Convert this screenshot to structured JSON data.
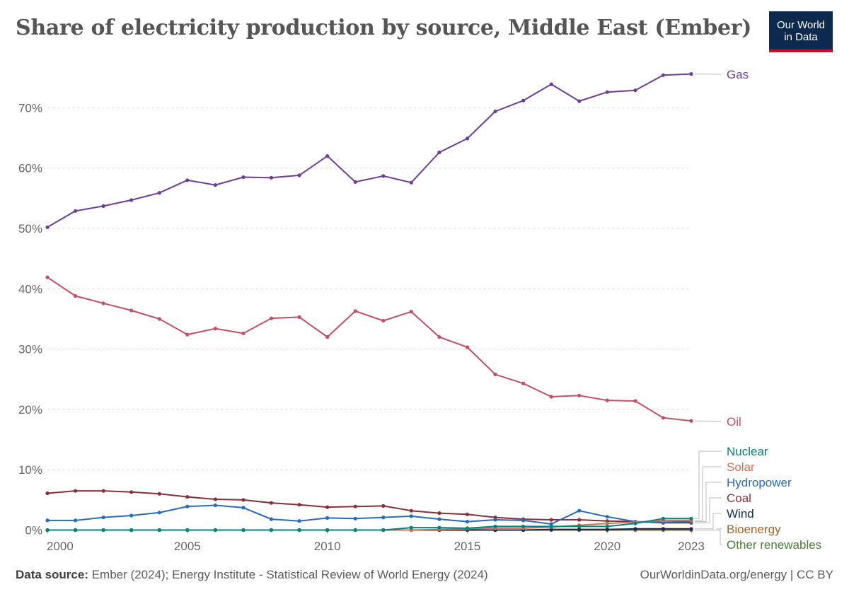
{
  "header": {
    "title": "Share of electricity production by source, Middle East (Ember)",
    "logo_line1": "Our World",
    "logo_line2": "in Data"
  },
  "footer": {
    "source_label": "Data source:",
    "source_text": "Ember (2024); Energy Institute - Statistical Review of World Energy (2024)",
    "credit": "OurWorldinData.org/energy | CC BY"
  },
  "chart_data": {
    "type": "line",
    "x": [
      2000,
      2001,
      2002,
      2003,
      2004,
      2005,
      2006,
      2007,
      2008,
      2009,
      2010,
      2011,
      2012,
      2013,
      2014,
      2015,
      2016,
      2017,
      2018,
      2019,
      2020,
      2021,
      2022,
      2023
    ],
    "x_ticks": [
      "2000",
      "2005",
      "2010",
      "2015",
      "2020",
      "2023"
    ],
    "y_ticks": [
      "0%",
      "10%",
      "20%",
      "30%",
      "40%",
      "50%",
      "60%",
      "70%"
    ],
    "ylim": [
      0,
      76
    ],
    "grid": "horizontal dashed",
    "series": [
      {
        "name": "Gas",
        "color": "#6d3e91",
        "values": [
          50.2,
          52.9,
          53.7,
          54.7,
          55.9,
          58.0,
          57.2,
          58.5,
          58.4,
          58.8,
          62.0,
          57.7,
          58.7,
          57.6,
          62.6,
          64.9,
          69.4,
          71.2,
          73.9,
          71.1,
          72.6,
          72.9,
          75.4,
          75.6
        ]
      },
      {
        "name": "Oil",
        "color": "#c15065",
        "values": [
          41.9,
          38.8,
          37.6,
          36.4,
          35.0,
          32.4,
          33.4,
          32.6,
          35.1,
          35.3,
          32.0,
          36.3,
          34.7,
          36.2,
          32.0,
          30.3,
          25.8,
          24.3,
          22.1,
          22.3,
          21.5,
          21.4,
          18.6,
          18.1
        ]
      },
      {
        "name": "Nuclear",
        "color": "#00847e",
        "values": [
          0,
          0,
          0,
          0,
          0,
          0,
          0,
          0,
          0,
          0,
          0,
          0,
          0,
          0.4,
          0.4,
          0.3,
          0.6,
          0.6,
          0.6,
          0.6,
          0.6,
          1.1,
          1.9,
          1.9
        ]
      },
      {
        "name": "Solar",
        "color": "#d36e58",
        "values": [
          0,
          0,
          0,
          0,
          0,
          0,
          0,
          0,
          0,
          0,
          0,
          0,
          0,
          0,
          0.1,
          0.2,
          0.3,
          0.3,
          0.5,
          0.8,
          1.1,
          1.3,
          1.6,
          1.6
        ]
      },
      {
        "name": "Hydropower",
        "color": "#286bbb",
        "values": [
          1.6,
          1.6,
          2.1,
          2.4,
          2.9,
          3.9,
          4.1,
          3.7,
          1.8,
          1.5,
          2.0,
          1.9,
          2.1,
          2.3,
          1.8,
          1.4,
          1.7,
          1.6,
          1.0,
          3.2,
          2.2,
          1.4,
          1.3,
          1.4
        ]
      },
      {
        "name": "Coal",
        "color": "#883039",
        "values": [
          6.1,
          6.5,
          6.5,
          6.3,
          6.0,
          5.5,
          5.1,
          5.0,
          4.5,
          4.2,
          3.8,
          3.9,
          4.0,
          3.2,
          2.8,
          2.6,
          2.1,
          1.8,
          1.7,
          1.7,
          1.5,
          1.4,
          1.2,
          1.2
        ]
      },
      {
        "name": "Wind",
        "color": "#0e2a53",
        "values": [
          0,
          0,
          0,
          0,
          0,
          0,
          0,
          0,
          0,
          0,
          0,
          0,
          0,
          0,
          0,
          0,
          0,
          0,
          0.1,
          0.1,
          0.1,
          0.2,
          0.2,
          0.2
        ]
      },
      {
        "name": "Bioenergy",
        "color": "#a2632d",
        "values": [
          0,
          0,
          0,
          0,
          0,
          0,
          0,
          0,
          0,
          0,
          0,
          0,
          0,
          0,
          0,
          0,
          0,
          0,
          0,
          0,
          0,
          0,
          0,
          0
        ]
      },
      {
        "name": "Other renewables",
        "color": "#4c7c38",
        "values": [
          0,
          0,
          0,
          0,
          0,
          0,
          0,
          0,
          0,
          0,
          0,
          0,
          0,
          0,
          0,
          0,
          0,
          0,
          0,
          0,
          0,
          0,
          0,
          0
        ]
      }
    ]
  }
}
